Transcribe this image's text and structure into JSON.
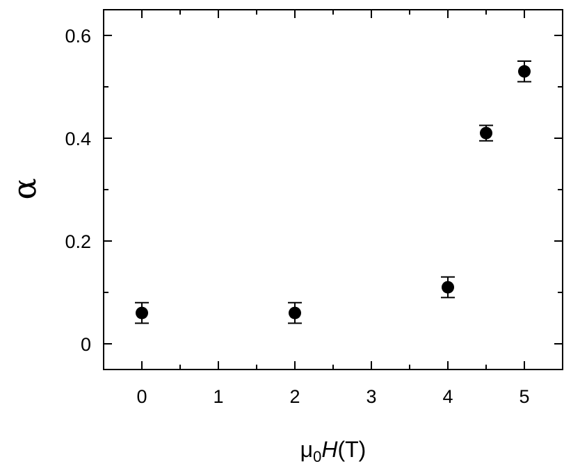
{
  "chart_data": {
    "type": "scatter",
    "title": "",
    "xlabel": {
      "symbol": "μ",
      "subscript": "0",
      "variable": "H",
      "unit": "(T)"
    },
    "ylabel": "α",
    "xlim": [
      -0.5,
      5.5
    ],
    "ylim": [
      -0.05,
      0.65
    ],
    "xticks": [
      0,
      1,
      2,
      3,
      4,
      5
    ],
    "xtick_labels": [
      "0",
      "1",
      "2",
      "3",
      "4",
      "5"
    ],
    "yticks": [
      0,
      0.2,
      0.4,
      0.6
    ],
    "ytick_labels": [
      "0",
      "0.2",
      "0.4",
      "0.6"
    ],
    "grid": false,
    "series": [
      {
        "marker_color": "#000000",
        "points": [
          {
            "x": 0,
            "y": 0.06,
            "err": 0.02
          },
          {
            "x": 2,
            "y": 0.06,
            "err": 0.02
          },
          {
            "x": 4,
            "y": 0.11,
            "err": 0.02
          },
          {
            "x": 4.5,
            "y": 0.41,
            "err": 0.015
          },
          {
            "x": 5,
            "y": 0.53,
            "err": 0.02
          }
        ]
      }
    ]
  }
}
